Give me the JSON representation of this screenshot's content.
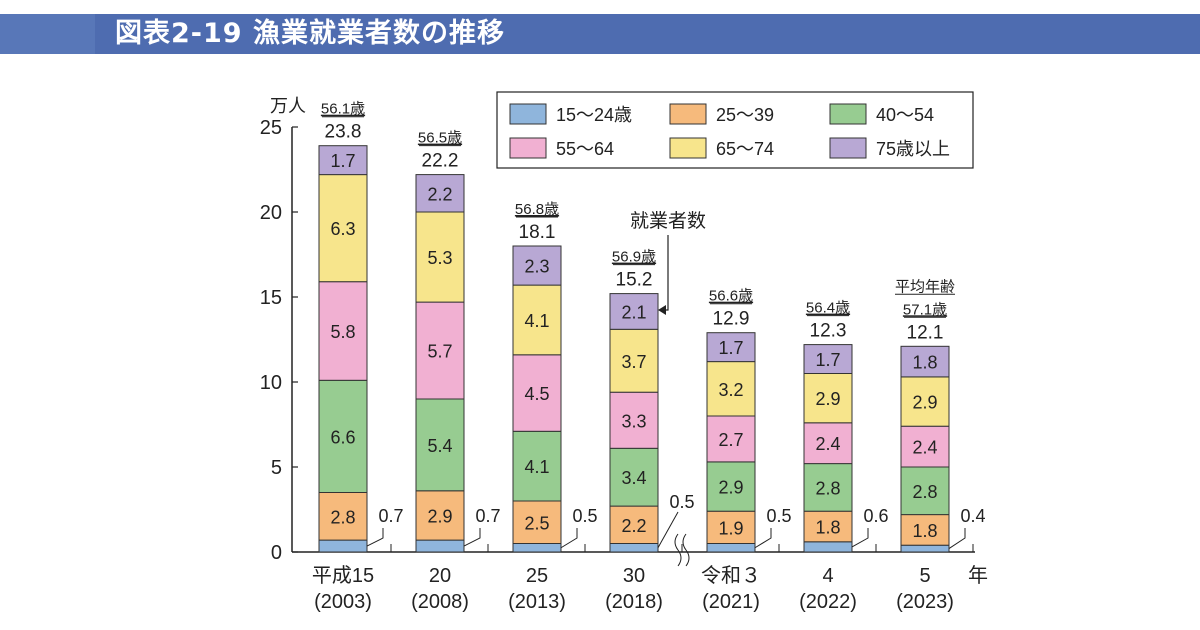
{
  "header": {
    "title": "図表2-19 漁業就業者数の推移",
    "band_color": "#4e6cb0"
  },
  "chart_data": {
    "type": "bar",
    "stacked": true,
    "ylabel": "万人",
    "xunit": "年",
    "ylim": [
      0,
      25
    ],
    "yticks": [
      0,
      5,
      10,
      15,
      20,
      25
    ],
    "categories": [
      {
        "label": "平成15",
        "year": "(2003)"
      },
      {
        "label": "20",
        "year": "(2008)"
      },
      {
        "label": "25",
        "year": "(2013)"
      },
      {
        "label": "30",
        "year": "(2018)"
      },
      {
        "label": "令和３",
        "year": "(2021)"
      },
      {
        "label": "4",
        "year": "(2022)"
      },
      {
        "label": "5",
        "year": "(2023)"
      }
    ],
    "series": [
      {
        "name": "15～24歳",
        "color": "#8fb5dc",
        "values": [
          0.7,
          0.7,
          0.5,
          0.5,
          0.5,
          0.6,
          0.4
        ]
      },
      {
        "name": "25～39",
        "color": "#f6ba7c",
        "values": [
          2.8,
          2.9,
          2.5,
          2.2,
          1.9,
          1.8,
          1.8
        ]
      },
      {
        "name": "40～54",
        "color": "#97cc91",
        "values": [
          6.6,
          5.4,
          4.1,
          3.4,
          2.9,
          2.8,
          2.8
        ]
      },
      {
        "name": "55～64",
        "color": "#f1b0d2",
        "values": [
          5.8,
          5.7,
          4.5,
          3.3,
          2.7,
          2.4,
          2.4
        ]
      },
      {
        "name": "65～74",
        "color": "#f7e58c",
        "values": [
          6.3,
          5.3,
          4.1,
          3.7,
          3.2,
          2.9,
          2.9
        ]
      },
      {
        "name": "75歳以上",
        "color": "#b8a8d4",
        "values": [
          1.7,
          2.2,
          2.3,
          2.1,
          1.7,
          1.7,
          1.8
        ]
      }
    ],
    "totals": [
      "23.8",
      "22.2",
      "18.1",
      "15.2",
      "12.9",
      "12.3",
      "12.1"
    ],
    "average_age": [
      "56.1歳",
      "56.5歳",
      "56.8歳",
      "56.9歳",
      "56.6歳",
      "56.4歳",
      "57.1歳"
    ],
    "average_age_label": "平均年齢",
    "annotation": "就業者数",
    "legend_position": "top-right",
    "axis_break_after": "30"
  }
}
